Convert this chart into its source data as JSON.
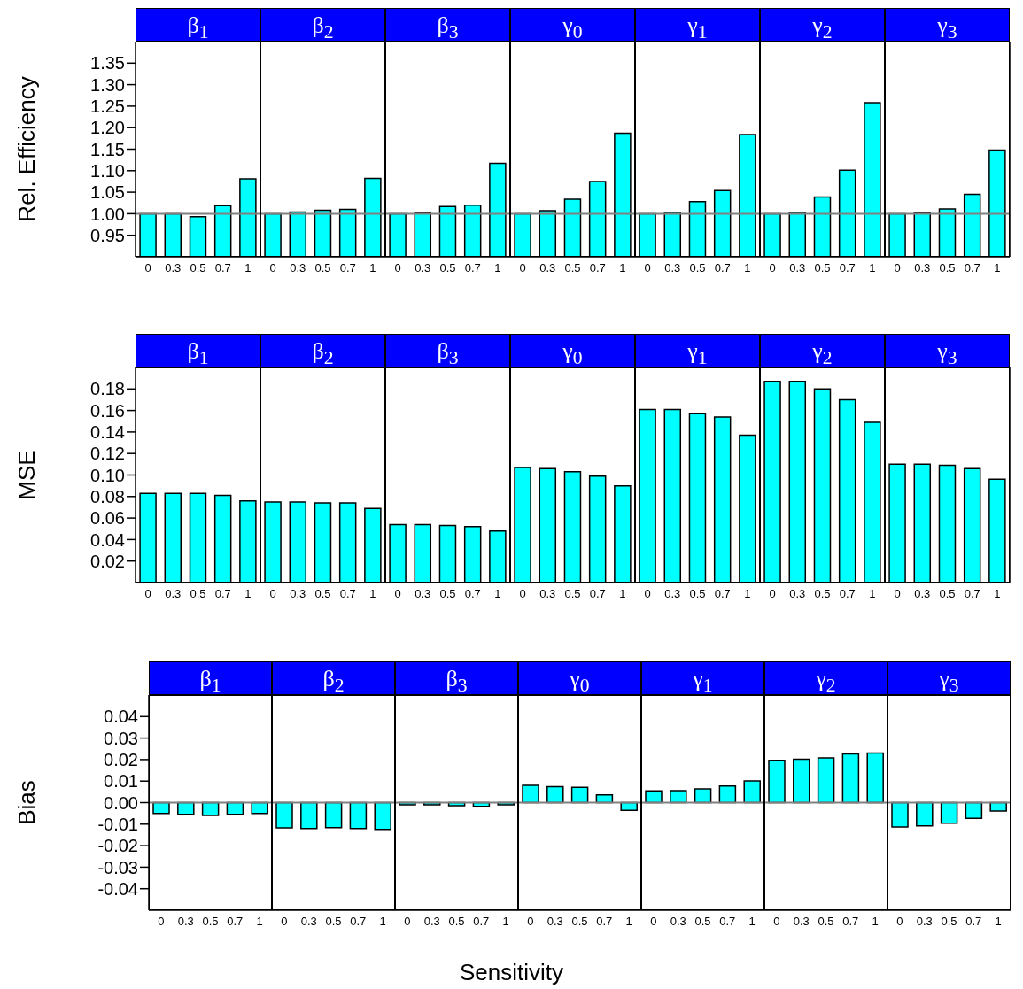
{
  "chart_data": [
    {
      "type": "bar",
      "title": "β$_{1}$",
      "ylabel": "Rel. Efficiency",
      "categories": [
        "0",
        "0.3",
        "0.5",
        "0.7",
        "1"
      ],
      "values": [
        1.0,
        1.0,
        0.993,
        1.019,
        1.081
      ],
      "color": "#00ffff",
      "ylim": [
        0.9,
        1.4
      ],
      "yticks": [
        0.95,
        {
          "value": 1,
          "label": "1.00"
        },
        1.05,
        {
          "value": 1.1,
          "label": "1.10"
        },
        1.15,
        {
          "value": 1.2,
          "label": "1.20"
        },
        1.25,
        {
          "value": 1.3,
          "label": "1.30"
        },
        1.35
      ],
      "ref_lines": [
        {
          "axis": "y",
          "value": 1,
          "color": "#808080"
        }
      ]
    },
    {
      "type": "bar",
      "title": "β$_{2}$",
      "categories": [
        "0",
        "0.3",
        "0.5",
        "0.7",
        "1"
      ],
      "values": [
        1.0,
        1.004,
        1.008,
        1.01,
        1.082
      ],
      "color": "#00ffff",
      "ylim": [
        0.9,
        1.4
      ],
      "tick_labels": "x",
      "ref_lines": [
        {
          "axis": "y",
          "value": 1,
          "color": "#808080"
        }
      ]
    },
    {
      "type": "bar",
      "title": "β$_{3}$",
      "categories": [
        "0",
        "0.3",
        "0.5",
        "0.7",
        "1"
      ],
      "values": [
        1.0,
        1.002,
        1.017,
        1.02,
        1.117
      ],
      "color": "#00ffff",
      "ylim": [
        0.9,
        1.4
      ],
      "tick_labels": "x",
      "ref_lines": [
        {
          "axis": "y",
          "value": 1,
          "color": "#808080"
        }
      ]
    },
    {
      "type": "bar",
      "title": "γ$_{0}$",
      "categories": [
        "0",
        "0.3",
        "0.5",
        "0.7",
        "1"
      ],
      "values": [
        1.0,
        1.007,
        1.034,
        1.075,
        1.187
      ],
      "color": "#00ffff",
      "ylim": [
        0.9,
        1.4
      ],
      "tick_labels": "x",
      "ref_lines": [
        {
          "axis": "y",
          "value": 1,
          "color": "#808080"
        }
      ]
    },
    {
      "type": "bar",
      "title": "γ$_{1}$",
      "categories": [
        "0",
        "0.3",
        "0.5",
        "0.7",
        "1"
      ],
      "values": [
        1.0,
        1.003,
        1.028,
        1.054,
        1.184
      ],
      "color": "#00ffff",
      "ylim": [
        0.9,
        1.4
      ],
      "tick_labels": "x",
      "ref_lines": [
        {
          "axis": "y",
          "value": 1,
          "color": "#808080"
        }
      ]
    },
    {
      "type": "bar",
      "title": "γ$_{2}$",
      "categories": [
        "0",
        "0.3",
        "0.5",
        "0.7",
        "1"
      ],
      "values": [
        1.0,
        1.003,
        1.039,
        1.101,
        1.258
      ],
      "color": "#00ffff",
      "ylim": [
        0.9,
        1.4
      ],
      "tick_labels": "x",
      "ref_lines": [
        {
          "axis": "y",
          "value": 1,
          "color": "#808080"
        }
      ]
    },
    {
      "type": "bar",
      "title": "γ$_{3}$",
      "categories": [
        "0",
        "0.3",
        "0.5",
        "0.7",
        "1"
      ],
      "values": [
        1.0,
        1.002,
        1.011,
        1.045,
        1.148
      ],
      "color": "#00ffff",
      "ylim": [
        0.9,
        1.4
      ],
      "yticks": [
        {
          "value": 0.95,
          "label": null
        },
        {
          "value": 1,
          "label": null
        },
        {
          "value": 1.05,
          "label": null
        },
        {
          "value": 1.1,
          "label": null
        },
        {
          "value": 1.15,
          "label": null
        },
        {
          "value": 1.2,
          "label": null
        },
        {
          "value": 1.25,
          "label": null
        },
        {
          "value": 1.3,
          "label": null
        },
        {
          "value": 1.35,
          "label": null
        }
      ],
      "tick_labels": "x",
      "ref_lines": [
        {
          "axis": "y",
          "value": 1,
          "color": "#808080"
        }
      ]
    },
    {
      "type": "bar",
      "title": "β$_{1}$",
      "ylabel": "MSE",
      "categories": [
        "0",
        "0.3",
        "0.5",
        "0.7",
        "1"
      ],
      "values": [
        0.083,
        0.083,
        0.083,
        0.081,
        0.076
      ],
      "color": "#00ffff",
      "ylim": [
        0,
        0.2
      ],
      "yticks": [
        0.02,
        0.04,
        0.06,
        0.08,
        {
          "value": 0.1,
          "label": "0.10"
        },
        0.12,
        0.14,
        0.16,
        0.18
      ]
    },
    {
      "type": "bar",
      "title": "β$_{2}$",
      "categories": [
        "0",
        "0.3",
        "0.5",
        "0.7",
        "1"
      ],
      "values": [
        0.075,
        0.075,
        0.074,
        0.074,
        0.069
      ],
      "color": "#00ffff",
      "ylim": [
        0,
        0.2
      ],
      "tick_labels": "x"
    },
    {
      "type": "bar",
      "title": "β$_{3}$",
      "categories": [
        "0",
        "0.3",
        "0.5",
        "0.7",
        "1"
      ],
      "values": [
        0.054,
        0.054,
        0.053,
        0.052,
        0.048
      ],
      "color": "#00ffff",
      "ylim": [
        0,
        0.2
      ],
      "tick_labels": "x"
    },
    {
      "type": "bar",
      "title": "γ$_{0}$",
      "categories": [
        "0",
        "0.3",
        "0.5",
        "0.7",
        "1"
      ],
      "values": [
        0.107,
        0.106,
        0.103,
        0.099,
        0.09
      ],
      "color": "#00ffff",
      "ylim": [
        0,
        0.2
      ],
      "tick_labels": "x"
    },
    {
      "type": "bar",
      "title": "γ$_{1}$",
      "categories": [
        "0",
        "0.3",
        "0.5",
        "0.7",
        "1"
      ],
      "values": [
        0.161,
        0.161,
        0.157,
        0.154,
        0.137
      ],
      "color": "#00ffff",
      "ylim": [
        0,
        0.2
      ],
      "tick_labels": "x"
    },
    {
      "type": "bar",
      "title": "γ$_{2}$",
      "categories": [
        "0",
        "0.3",
        "0.5",
        "0.7",
        "1"
      ],
      "values": [
        0.187,
        0.187,
        0.18,
        0.17,
        0.149
      ],
      "color": "#00ffff",
      "ylim": [
        0,
        0.2
      ],
      "tick_labels": "x"
    },
    {
      "type": "bar",
      "title": "γ$_{3}$",
      "categories": [
        "0",
        "0.3",
        "0.5",
        "0.7",
        "1"
      ],
      "values": [
        0.11,
        0.11,
        0.109,
        0.106,
        0.096
      ],
      "color": "#00ffff",
      "ylim": [
        0,
        0.2
      ],
      "yticks": [
        {
          "value": 0.02,
          "label": null
        },
        {
          "value": 0.04,
          "label": null
        },
        {
          "value": 0.06,
          "label": null
        },
        {
          "value": 0.08,
          "label": null
        },
        {
          "value": 0.1,
          "label": null
        },
        {
          "value": 0.12,
          "label": null
        },
        {
          "value": 0.14,
          "label": null
        },
        {
          "value": 0.16,
          "label": null
        },
        {
          "value": 0.18,
          "label": null
        }
      ],
      "tick_labels": "x"
    },
    {
      "type": "bar",
      "title": "β$_{1}$",
      "ylabel": "Bias",
      "categories": [
        "0",
        "0.3",
        "0.5",
        "0.7",
        "1"
      ],
      "values": [
        -0.005,
        -0.0055,
        -0.006,
        -0.0055,
        -0.005
      ],
      "color": "#00ffff",
      "ylim": [
        -0.05,
        0.05
      ],
      "yticks": [
        -0.04,
        -0.03,
        -0.02,
        -0.01,
        {
          "value": 0,
          "label": "0.00"
        },
        0.01,
        0.02,
        0.03,
        0.04
      ],
      "ref_lines": [
        {
          "axis": "y",
          "value": 0,
          "color": "#808080"
        }
      ]
    },
    {
      "type": "bar",
      "title": "β$_{2}$",
      "categories": [
        "0",
        "0.3",
        "0.5",
        "0.7",
        "1"
      ],
      "values": [
        -0.0117,
        -0.012,
        -0.0116,
        -0.012,
        -0.0124
      ],
      "color": "#00ffff",
      "ylim": [
        -0.05,
        0.05
      ],
      "tick_labels": "x",
      "ref_lines": [
        {
          "axis": "y",
          "value": 0,
          "color": "#808080"
        }
      ]
    },
    {
      "type": "bar",
      "title": "β$_{3}$",
      "categories": [
        "0",
        "0.3",
        "0.5",
        "0.7",
        "1"
      ],
      "values": [
        -0.001,
        -0.001,
        -0.0014,
        -0.0018,
        -0.001
      ],
      "color": "#00ffff",
      "ylim": [
        -0.05,
        0.05
      ],
      "tick_labels": "x",
      "ref_lines": [
        {
          "axis": "y",
          "value": 0,
          "color": "#808080"
        }
      ]
    },
    {
      "type": "bar",
      "title": "γ$_{0}$",
      "xlabel": "Sensitivity",
      "categories": [
        "0",
        "0.3",
        "0.5",
        "0.7",
        "1"
      ],
      "values": [
        0.008,
        0.0074,
        0.0071,
        0.0036,
        -0.0036
      ],
      "color": "#00ffff",
      "ylim": [
        -0.05,
        0.05
      ],
      "tick_labels": "x",
      "ref_lines": [
        {
          "axis": "y",
          "value": 0,
          "color": "#808080"
        }
      ]
    },
    {
      "type": "bar",
      "title": "γ$_{1}$",
      "categories": [
        "0",
        "0.3",
        "0.5",
        "0.7",
        "1"
      ],
      "values": [
        0.0055,
        0.0056,
        0.0064,
        0.0077,
        0.0101
      ],
      "color": "#00ffff",
      "ylim": [
        -0.05,
        0.05
      ],
      "tick_labels": "x",
      "ref_lines": [
        {
          "axis": "y",
          "value": 0,
          "color": "#808080"
        }
      ]
    },
    {
      "type": "bar",
      "title": "γ$_{2}$",
      "categories": [
        "0",
        "0.3",
        "0.5",
        "0.7",
        "1"
      ],
      "values": [
        0.0196,
        0.0202,
        0.0208,
        0.0226,
        0.023
      ],
      "color": "#00ffff",
      "ylim": [
        -0.05,
        0.05
      ],
      "tick_labels": "x",
      "ref_lines": [
        {
          "axis": "y",
          "value": 0,
          "color": "#808080"
        }
      ]
    },
    {
      "type": "bar",
      "title": "γ$_{3}$",
      "categories": [
        "0",
        "0.3",
        "0.5",
        "0.7",
        "1"
      ],
      "values": [
        -0.0113,
        -0.0108,
        -0.0096,
        -0.0073,
        -0.0039
      ],
      "color": "#00ffff",
      "ylim": [
        -0.05,
        0.05
      ],
      "yticks": [
        {
          "value": -0.04,
          "label": null
        },
        {
          "value": -0.03,
          "label": null
        },
        {
          "value": -0.02,
          "label": null
        },
        {
          "value": -0.01,
          "label": null
        },
        {
          "value": 0,
          "label": null
        },
        {
          "value": 0.01,
          "label": null
        },
        {
          "value": 0.02,
          "label": null
        },
        {
          "value": 0.03,
          "label": null
        },
        {
          "value": 0.04,
          "label": null
        }
      ],
      "tick_labels": "x",
      "ref_lines": [
        {
          "axis": "y",
          "value": 0,
          "color": "#808080"
        }
      ]
    }
  ]
}
